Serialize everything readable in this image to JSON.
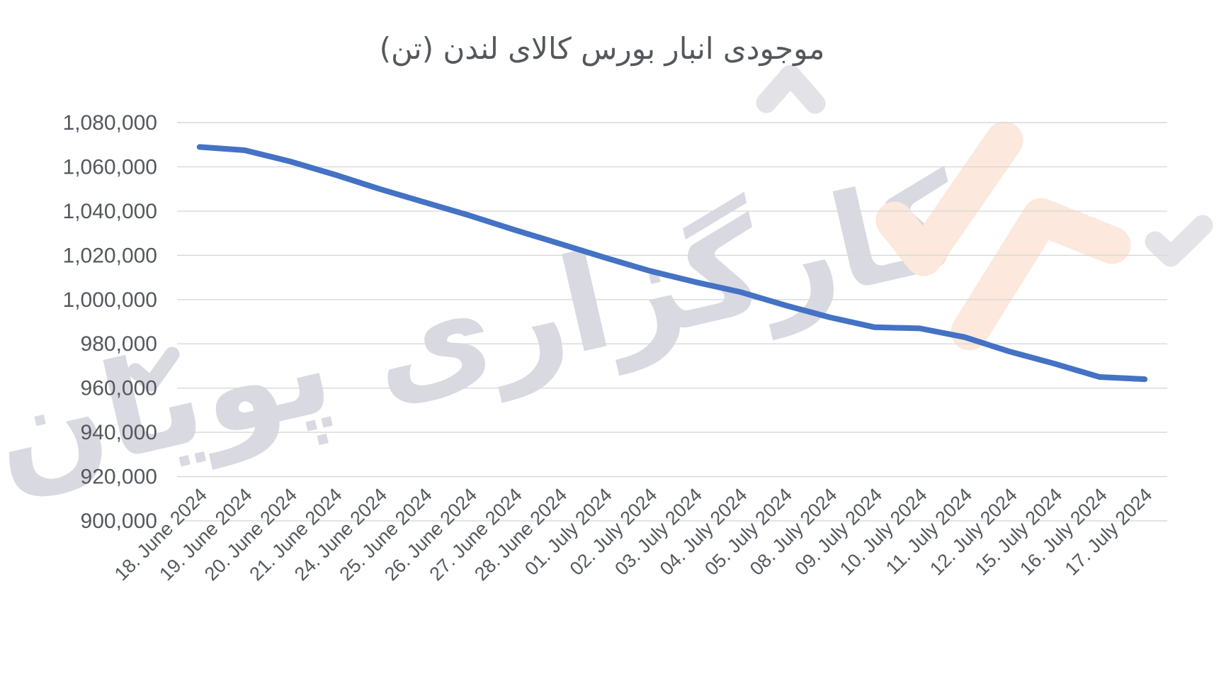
{
  "title": "موجودی انبار بورس کالای لندن (تن)",
  "watermark": {
    "brand_text": "کارگزاری پویان",
    "gray_color": "#d9d9e2",
    "peach_color": "#fce8dc"
  },
  "chart_data": {
    "type": "line",
    "title": "موجودی انبار بورس کالای لندن (تن)",
    "categories": [
      "18. June 2024",
      "19. June 2024",
      "20. June 2024",
      "21. June 2024",
      "24. June 2024",
      "25. June 2024",
      "26. June 2024",
      "27. June 2024",
      "28. June 2024",
      "01. July 2024",
      "02. July 2024",
      "03. July 2024",
      "04. July 2024",
      "05. July 2024",
      "08. July 2024",
      "09. July 2024",
      "10. July 2024",
      "11. July 2024",
      "12. July 2024",
      "15. July 2024",
      "16. July 2024",
      "17. July 2024"
    ],
    "values": [
      1069000,
      1067500,
      1062500,
      1056500,
      1050000,
      1044000,
      1038000,
      1031500,
      1025300,
      1019000,
      1013000,
      1008000,
      1003500,
      997500,
      992000,
      987500,
      987000,
      983000,
      976500,
      971000,
      965000,
      964000
    ],
    "ylim": [
      900000,
      1080000
    ],
    "ytick_step": 20000,
    "xlabel": "",
    "ylabel": "",
    "legend": "none",
    "grid": "horizontal",
    "x_label_rotation": -45,
    "line_color": "#4472c4",
    "gridline_color": "#d8d8d8",
    "label_color": "#54585d"
  }
}
